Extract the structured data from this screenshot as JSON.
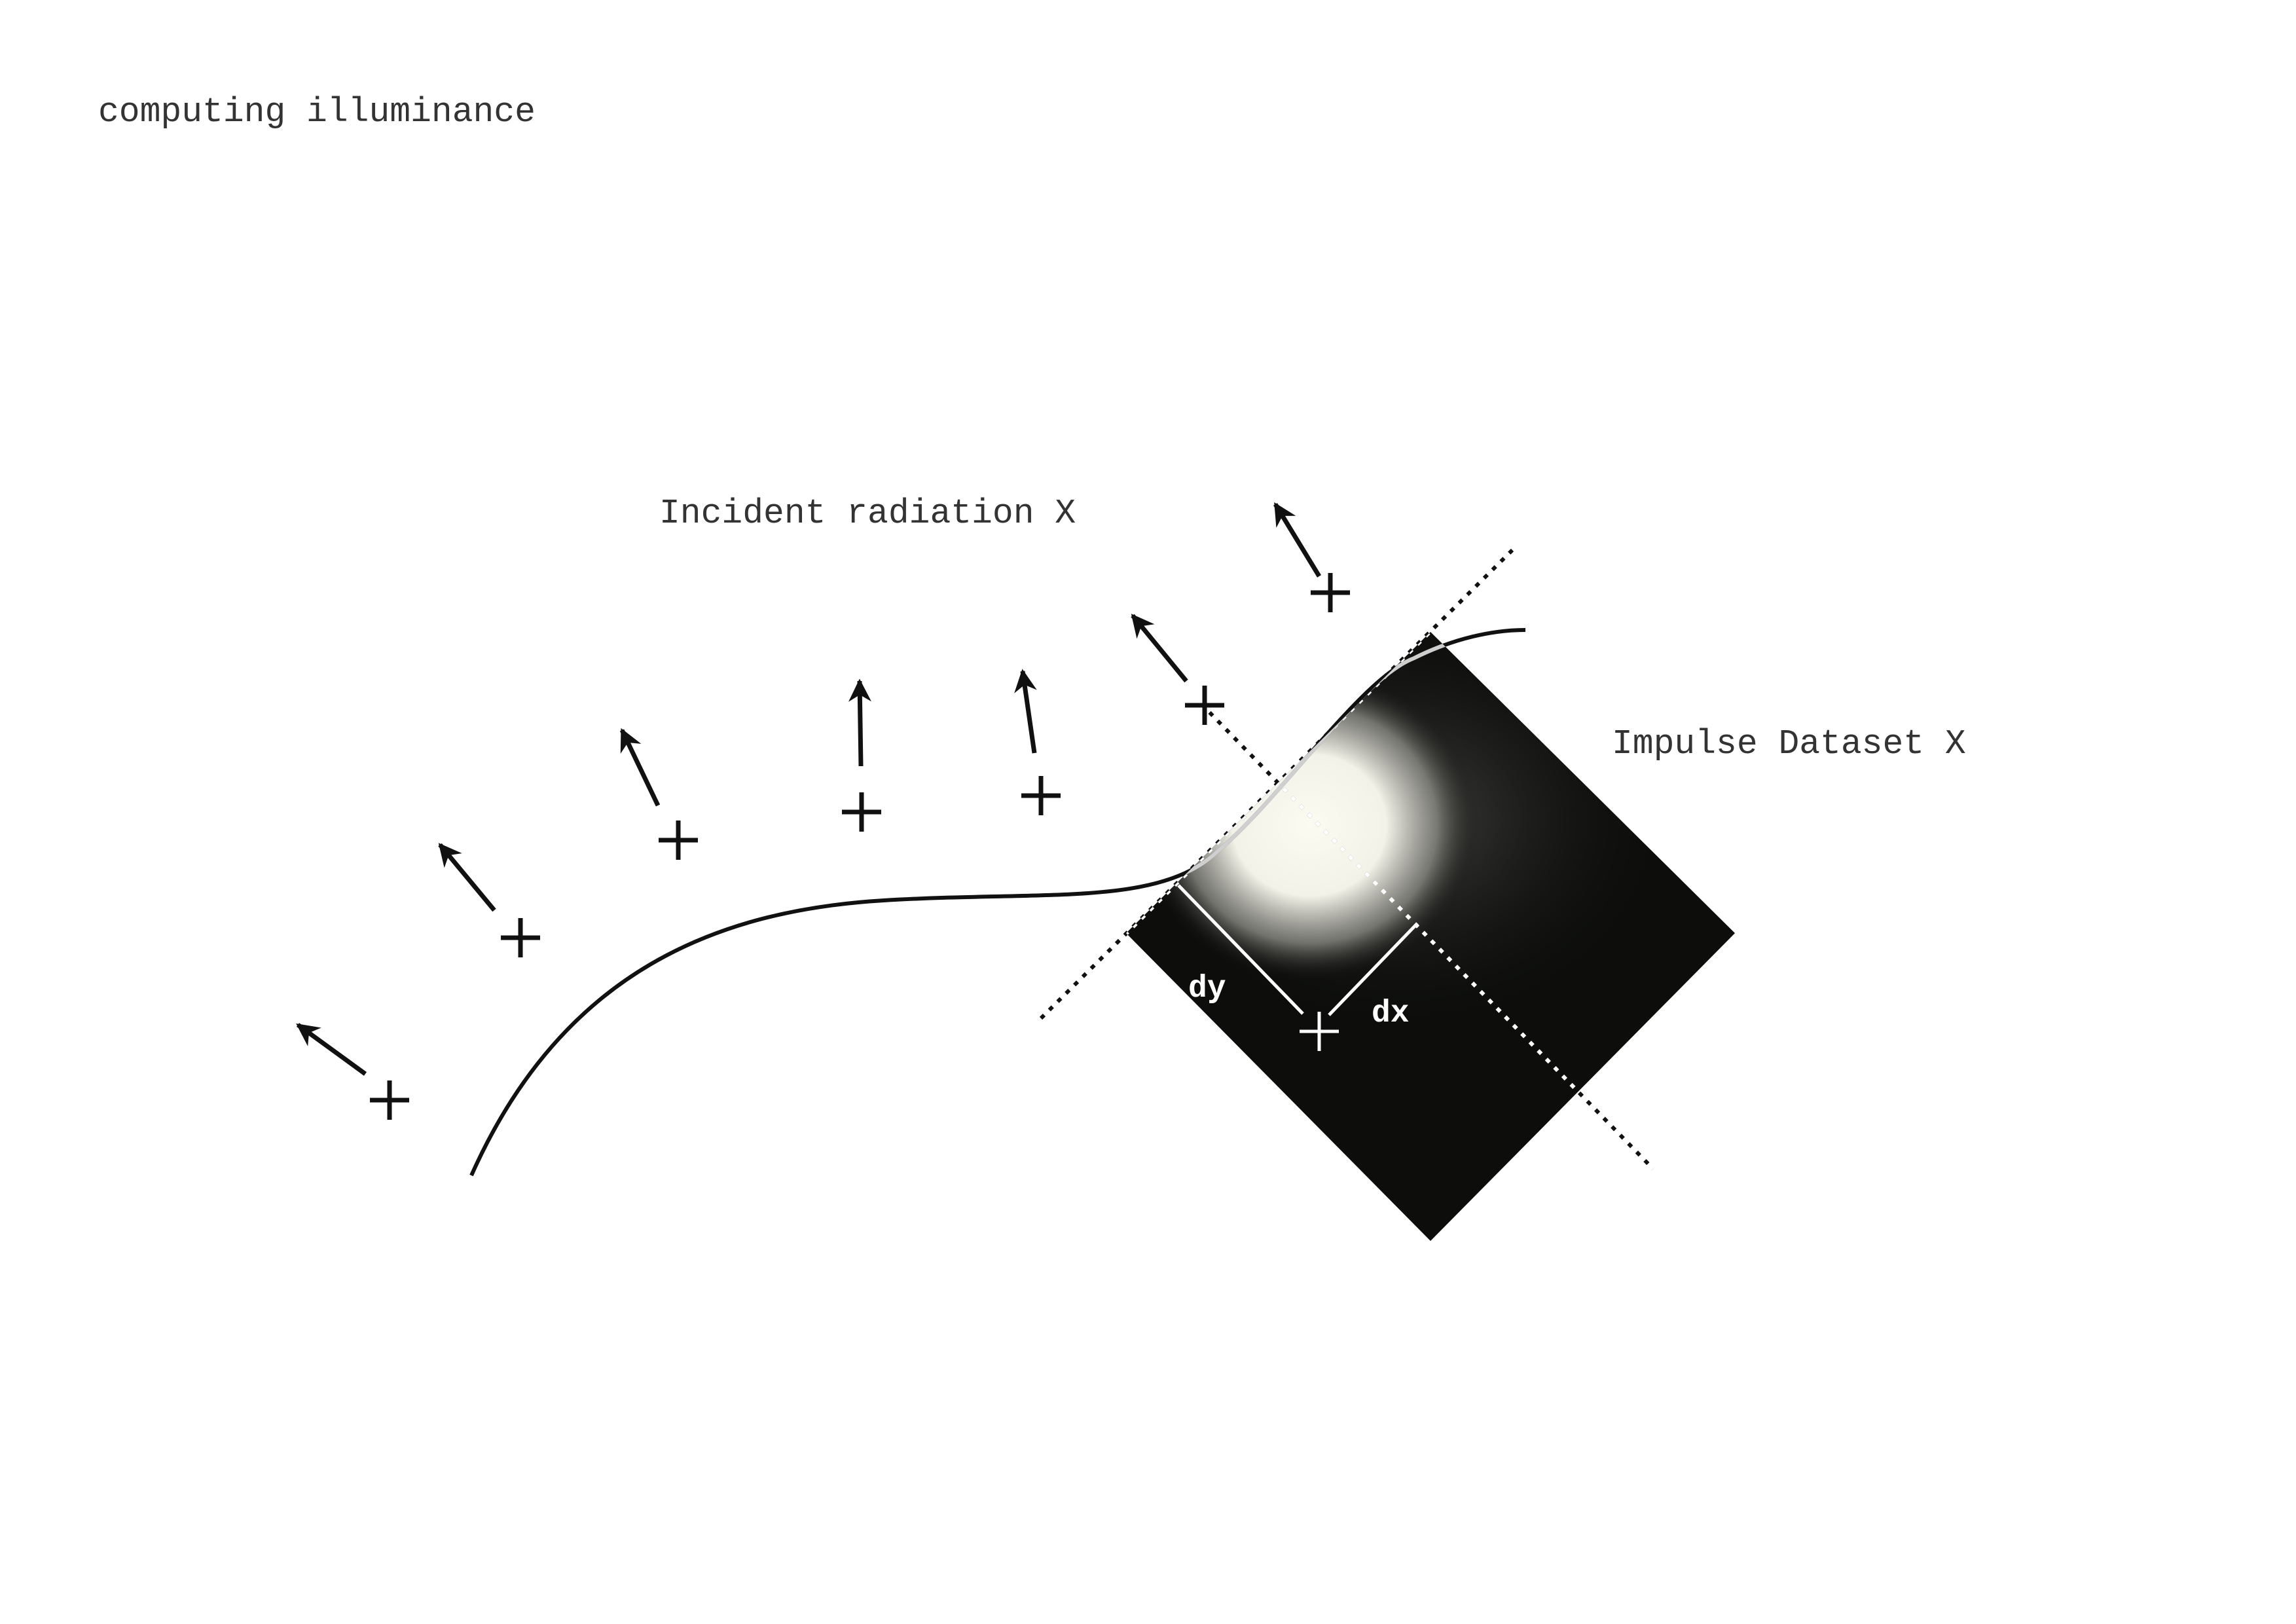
{
  "title": "computing illuminance",
  "labels": {
    "incident": "Incident radiation X",
    "dataset": "Impulse Dataset X",
    "dy": "dy",
    "dx": "dx"
  },
  "colors": {
    "background": "#ffffff",
    "ink": "#111111",
    "text": "#333333",
    "dataset_fill": "#0d0e0c",
    "highlight": "#fbfbf2"
  },
  "icons": {
    "sample_marker": "plus-marker-icon",
    "direction": "arrow-icon"
  }
}
